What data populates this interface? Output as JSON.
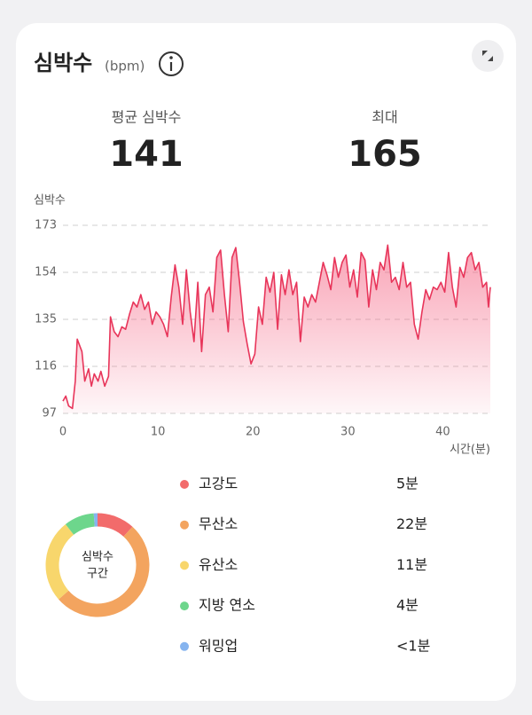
{
  "header": {
    "title": "심박수",
    "unit": "(bpm)"
  },
  "stats": [
    {
      "label": "평균 심박수",
      "value": 141
    },
    {
      "label": "최대",
      "value": 165
    }
  ],
  "chart_data": [
    {
      "type": "line",
      "y_label": "심박수",
      "x_label": "시간(분)",
      "color": "#e8355a",
      "xlim": [
        0,
        45
      ],
      "xticks": [
        0,
        10,
        20,
        30,
        40
      ],
      "ylim": [
        97,
        173
      ],
      "yticks": [
        97,
        116,
        135,
        154,
        173
      ],
      "grid": true,
      "x": [
        0,
        0.3,
        0.6,
        1,
        1.3,
        1.5,
        2,
        2.3,
        2.7,
        3,
        3.3,
        3.7,
        4,
        4.4,
        4.8,
        5,
        5.4,
        5.8,
        6.2,
        6.6,
        7,
        7.4,
        7.8,
        8.2,
        8.6,
        9,
        9.4,
        9.8,
        10.2,
        10.6,
        11,
        11.4,
        11.8,
        12.2,
        12.6,
        13,
        13.4,
        13.8,
        14.2,
        14.6,
        15,
        15.4,
        15.8,
        16.2,
        16.6,
        17,
        17.4,
        17.8,
        18.2,
        18.6,
        19,
        19.4,
        19.8,
        20.2,
        20.6,
        21,
        21.4,
        21.8,
        22.2,
        22.6,
        23,
        23.4,
        23.8,
        24.2,
        24.6,
        25,
        25.4,
        25.8,
        26.2,
        26.6,
        27,
        27.4,
        27.8,
        28.2,
        28.6,
        29,
        29.4,
        29.8,
        30.2,
        30.6,
        31,
        31.4,
        31.8,
        32.2,
        32.6,
        33,
        33.4,
        33.8,
        34.2,
        34.6,
        35,
        35.4,
        35.8,
        36.2,
        36.6,
        37,
        37.4,
        37.8,
        38.2,
        38.6,
        39,
        39.4,
        39.8,
        40.2,
        40.6,
        41,
        41.4,
        41.8,
        42.2,
        42.6,
        43,
        43.4,
        43.8,
        44.2,
        44.6,
        44.8,
        45
      ],
      "values": [
        102,
        104,
        100,
        99,
        110,
        127,
        122,
        110,
        115,
        108,
        113,
        110,
        114,
        108,
        112,
        136,
        130,
        128,
        132,
        131,
        137,
        142,
        140,
        145,
        139,
        142,
        133,
        138,
        136,
        133,
        128,
        144,
        157,
        148,
        133,
        155,
        138,
        126,
        150,
        122,
        145,
        148,
        138,
        160,
        163,
        145,
        130,
        160,
        164,
        150,
        134,
        125,
        117,
        121,
        140,
        133,
        152,
        146,
        154,
        131,
        153,
        145,
        155,
        145,
        150,
        126,
        144,
        140,
        145,
        142,
        150,
        158,
        153,
        147,
        160,
        152,
        158,
        161,
        148,
        155,
        144,
        162,
        159,
        140,
        155,
        147,
        158,
        155,
        165,
        150,
        152,
        147,
        158,
        148,
        150,
        133,
        127,
        138,
        147,
        143,
        148,
        147,
        150,
        146,
        162,
        148,
        140,
        156,
        152,
        160,
        162,
        155,
        158,
        148,
        150,
        140,
        148
      ]
    },
    {
      "type": "donut",
      "center_label": [
        "심박수",
        "구간"
      ],
      "categories": [
        "고강도",
        "무산소",
        "유산소",
        "지방 연소",
        "워밍업"
      ],
      "values": [
        5,
        22,
        11,
        4,
        0.5
      ],
      "value_labels": [
        "5분",
        "22분",
        "11분",
        "4분",
        "<1분"
      ],
      "colors": [
        "#f26b6b",
        "#f3a45f",
        "#f8d66c",
        "#6dd68c",
        "#86b4ef"
      ]
    }
  ]
}
